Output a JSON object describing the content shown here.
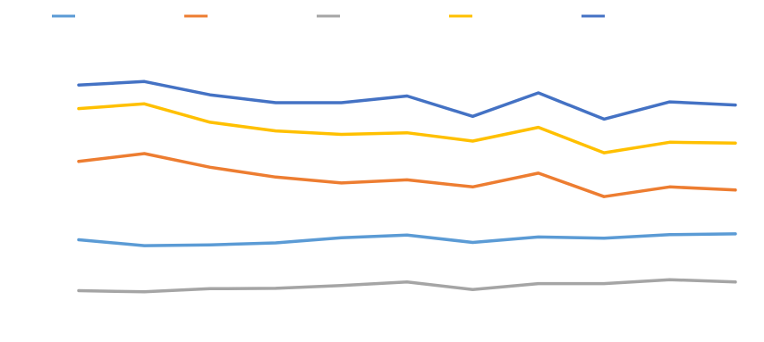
{
  "chart_data": {
    "type": "line",
    "title": "",
    "xlabel": "",
    "ylabel": "",
    "categories": [
      "",
      "",
      "",
      "",
      "",
      "",
      "",
      "",
      "",
      "",
      ""
    ],
    "ylim": [
      0,
      7
    ],
    "y_ticks": [
      {
        "value": 0,
        "label": ""
      },
      {
        "value": 1,
        "label": ""
      },
      {
        "value": 2,
        "label": ""
      },
      {
        "value": 3,
        "label": ""
      },
      {
        "value": 4,
        "label": ""
      },
      {
        "value": 5,
        "label": ""
      },
      {
        "value": 6,
        "label": ""
      },
      {
        "value": 7,
        "label": ""
      }
    ],
    "grid": false,
    "legend_position": "top",
    "series": [
      {
        "name": "",
        "color": "#5B9BD5",
        "values": [
          1.95,
          1.8,
          1.82,
          1.87,
          2.0,
          2.07,
          1.88,
          2.02,
          1.99,
          2.08,
          2.1
        ]
      },
      {
        "name": "",
        "color": "#ED7D31",
        "values": [
          3.95,
          4.15,
          3.8,
          3.55,
          3.4,
          3.48,
          3.3,
          3.65,
          3.05,
          3.3,
          3.22
        ]
      },
      {
        "name": "",
        "color": "#A5A5A5",
        "values": [
          0.65,
          0.62,
          0.7,
          0.71,
          0.78,
          0.87,
          0.68,
          0.83,
          0.83,
          0.93,
          0.87
        ]
      },
      {
        "name": "",
        "color": "#FFC000",
        "values": [
          5.3,
          5.42,
          4.95,
          4.73,
          4.64,
          4.68,
          4.47,
          4.82,
          4.17,
          4.44,
          4.42
        ]
      },
      {
        "name": "",
        "color": "#4472C4",
        "values": [
          5.9,
          5.99,
          5.65,
          5.45,
          5.45,
          5.62,
          5.1,
          5.7,
          5.03,
          5.47,
          5.39
        ]
      }
    ]
  }
}
